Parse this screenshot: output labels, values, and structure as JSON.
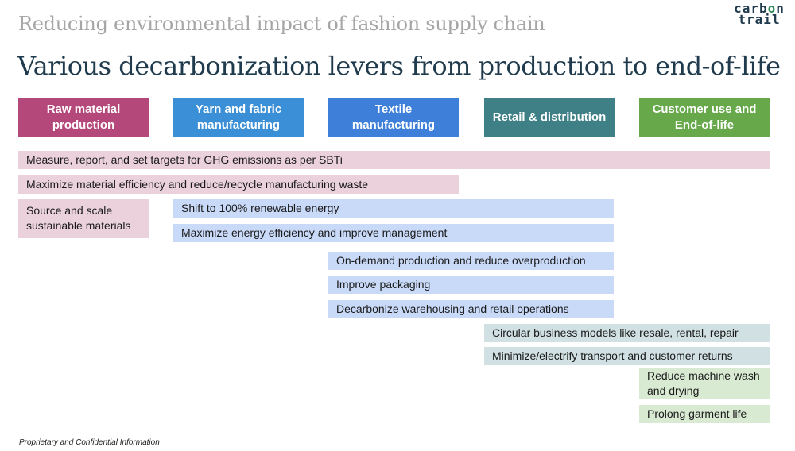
{
  "header": {
    "subtitle": "Reducing environmental impact of fashion supply chain",
    "title": "Various decarbonization levers from production to end-of-life",
    "logo_line1": "carb",
    "logo_o": "o",
    "logo_n": "n",
    "logo_line2": "trail"
  },
  "stages": [
    {
      "label": "Raw material production",
      "color": "#b5487a"
    },
    {
      "label": "Yarn and fabric manufacturing",
      "color": "#3b8fd6"
    },
    {
      "label": "Textile manufacturing",
      "color": "#3d7fd9"
    },
    {
      "label": "Retail & distribution",
      "color": "#3f8086"
    },
    {
      "label": "Customer use and End-of-life",
      "color": "#66a84a"
    }
  ],
  "levers": [
    {
      "text": "Measure, report, and set targets for GHG emissions as per SBTi",
      "color": "#ead1dc"
    },
    {
      "text": "Maximize material efficiency and reduce/recycle manufacturing waste",
      "color": "#ead1dc"
    },
    {
      "text": "Source and scale sustainable materials",
      "color": "#ead1dc"
    },
    {
      "text": "Shift to 100% renewable energy",
      "color": "#c9daf8"
    },
    {
      "text": "Maximize energy efficiency and improve management",
      "color": "#c9daf8"
    },
    {
      "text": "On-demand production and reduce overproduction",
      "color": "#c9daf8"
    },
    {
      "text": "Improve packaging",
      "color": "#c9daf8"
    },
    {
      "text": "Decarbonize warehousing and retail operations",
      "color": "#c9daf8"
    },
    {
      "text": "Circular business models like resale, rental, repair",
      "color": "#d0e0e3"
    },
    {
      "text": "Minimize/electrify transport and customer returns",
      "color": "#d0e0e3"
    },
    {
      "text": "Reduce machine wash and drying",
      "color": "#d9ead3"
    },
    {
      "text": "Prolong garment life",
      "color": "#d9ead3"
    }
  ],
  "footer": {
    "text": "Proprietary and Confidential Information"
  }
}
